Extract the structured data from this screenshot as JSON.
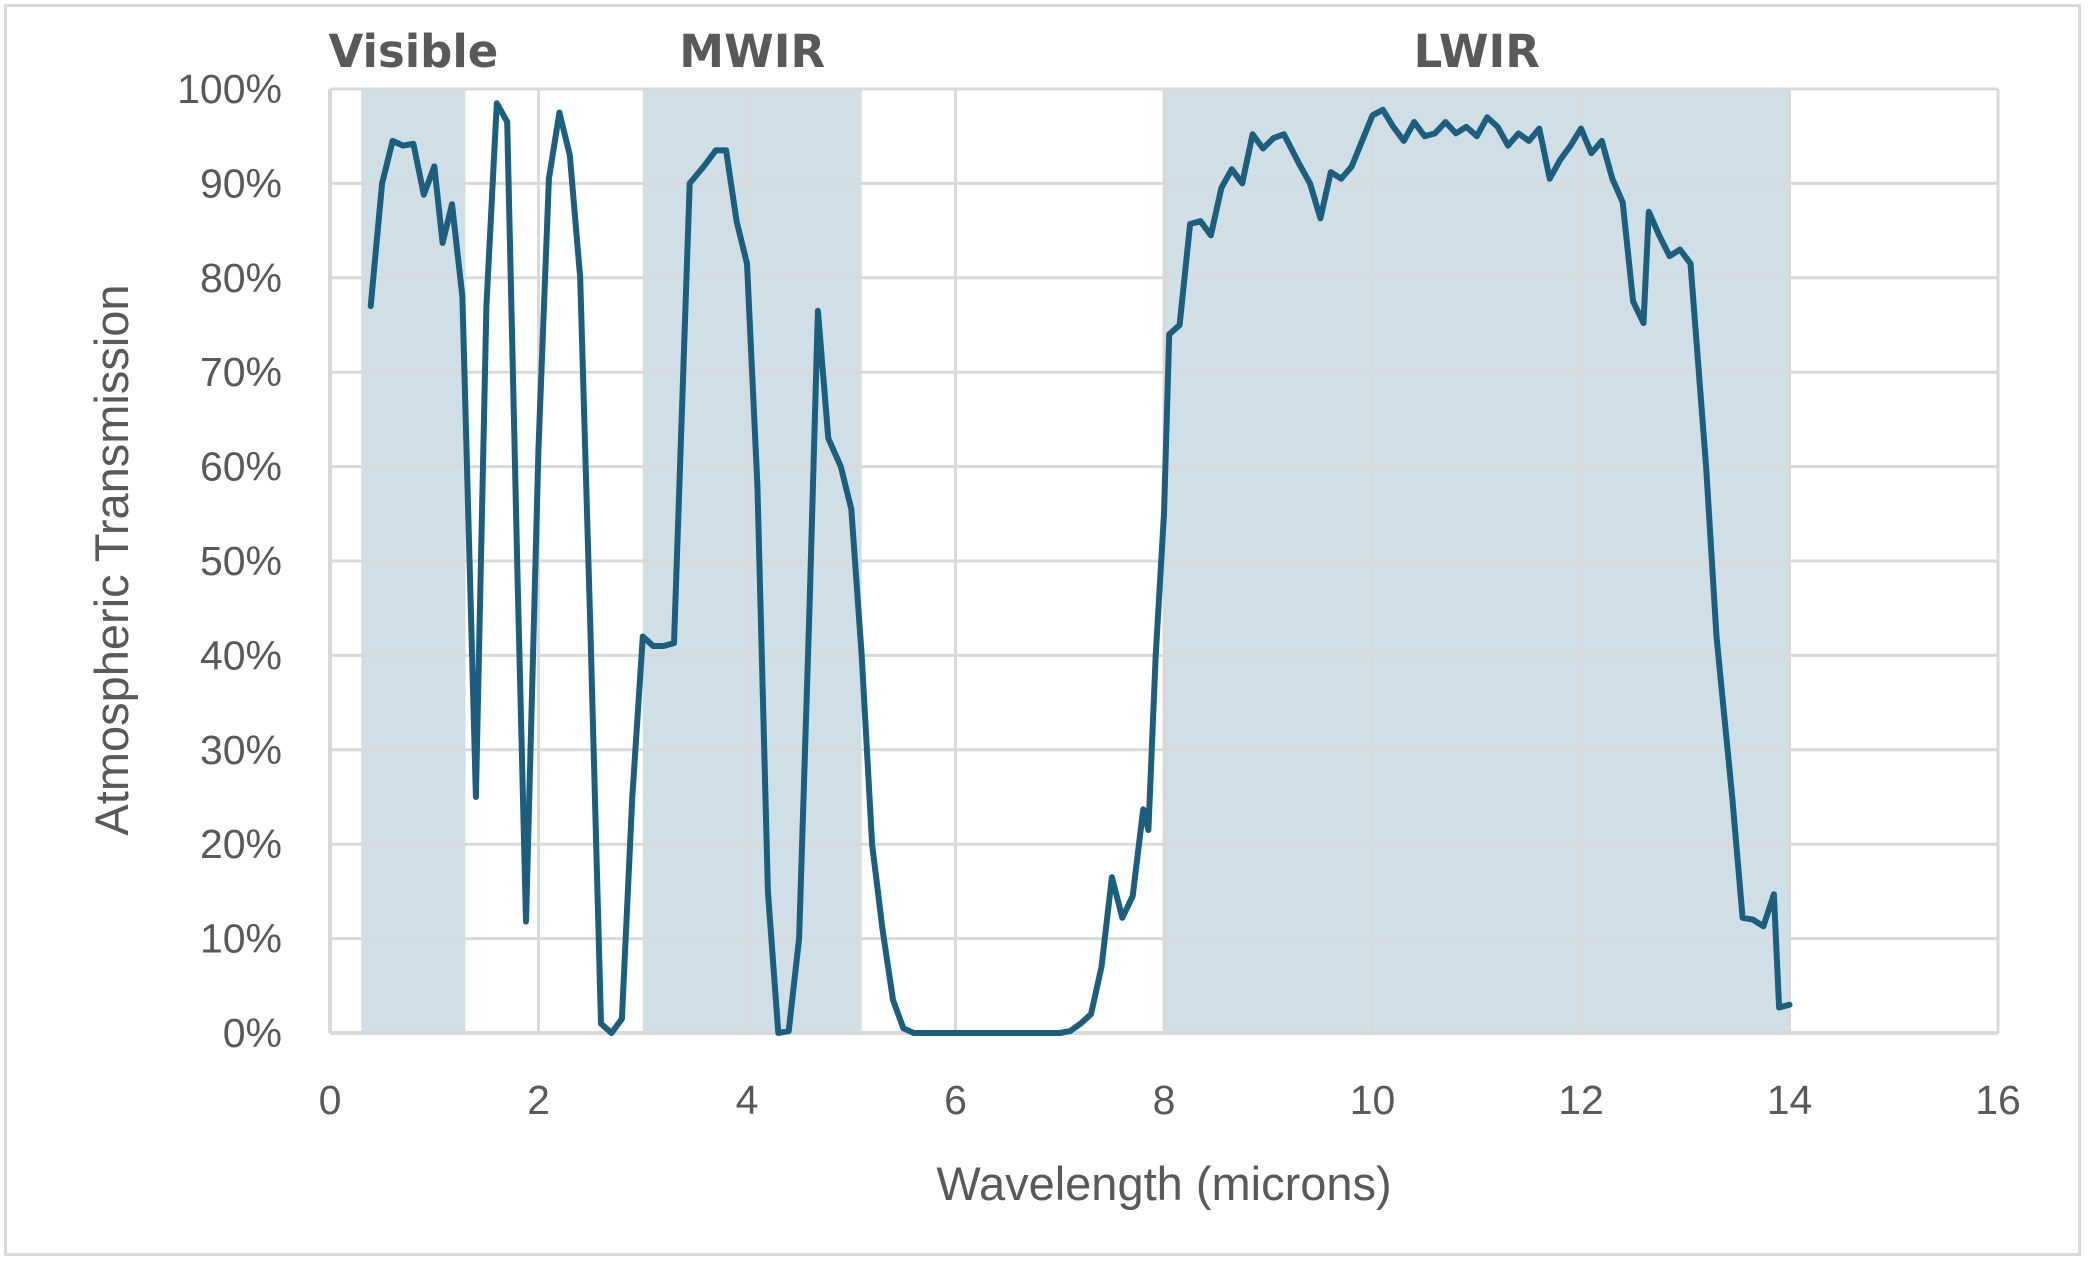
{
  "chart_data": {
    "type": "line",
    "title": "",
    "xlabel": "Wavelength (microns)",
    "ylabel": "Atmospheric Transmission",
    "xlim": [
      0,
      16
    ],
    "ylim": [
      0,
      1
    ],
    "x_ticks": [
      0,
      2,
      4,
      6,
      8,
      10,
      12,
      14,
      16
    ],
    "x_tick_labels": [
      "0",
      "2",
      "4",
      "6",
      "8",
      "10",
      "12",
      "14",
      "16"
    ],
    "y_ticks": [
      0,
      0.1,
      0.2,
      0.3,
      0.4,
      0.5,
      0.6,
      0.7,
      0.8,
      0.9,
      1.0
    ],
    "y_tick_labels": [
      "0%",
      "10%",
      "20%",
      "30%",
      "40%",
      "50%",
      "60%",
      "70%",
      "80%",
      "90%",
      "100%"
    ],
    "grid": true,
    "colors": {
      "line": "#1b5e7e",
      "band": "#d0dfe6",
      "grid": "#d9d9d9",
      "text": "#595959"
    },
    "bands": [
      {
        "name": "Visible",
        "x_start": 0.3,
        "x_end": 1.3
      },
      {
        "name": "MWIR",
        "x_start": 3.0,
        "x_end": 5.1
      },
      {
        "name": "LWIR",
        "x_start": 8.0,
        "x_end": 14.0
      }
    ],
    "series": [
      {
        "points": [
          [
            0.39,
            0.77
          ],
          [
            0.5,
            0.9
          ],
          [
            0.6,
            0.945
          ],
          [
            0.7,
            0.94
          ],
          [
            0.8,
            0.942
          ],
          [
            0.9,
            0.888
          ],
          [
            1.0,
            0.918
          ],
          [
            1.08,
            0.837
          ],
          [
            1.17,
            0.878
          ],
          [
            1.27,
            0.78
          ],
          [
            1.4,
            0.25
          ],
          [
            1.5,
            0.77
          ],
          [
            1.6,
            0.985
          ],
          [
            1.7,
            0.965
          ],
          [
            1.8,
            0.48
          ],
          [
            1.88,
            0.118
          ],
          [
            2.0,
            0.62
          ],
          [
            2.1,
            0.905
          ],
          [
            2.2,
            0.975
          ],
          [
            2.3,
            0.93
          ],
          [
            2.4,
            0.8
          ],
          [
            2.5,
            0.42
          ],
          [
            2.6,
            0.01
          ],
          [
            2.7,
            0.0
          ],
          [
            2.8,
            0.015
          ],
          [
            2.9,
            0.25
          ],
          [
            3.0,
            0.42
          ],
          [
            3.1,
            0.41
          ],
          [
            3.2,
            0.41
          ],
          [
            3.3,
            0.413
          ],
          [
            3.45,
            0.9
          ],
          [
            3.6,
            0.92
          ],
          [
            3.7,
            0.935
          ],
          [
            3.8,
            0.935
          ],
          [
            3.9,
            0.86
          ],
          [
            4.0,
            0.815
          ],
          [
            4.1,
            0.58
          ],
          [
            4.2,
            0.15
          ],
          [
            4.3,
            0.0
          ],
          [
            4.4,
            0.002
          ],
          [
            4.5,
            0.1
          ],
          [
            4.6,
            0.45
          ],
          [
            4.68,
            0.765
          ],
          [
            4.78,
            0.63
          ],
          [
            4.9,
            0.6
          ],
          [
            5.0,
            0.555
          ],
          [
            5.1,
            0.4
          ],
          [
            5.2,
            0.2
          ],
          [
            5.3,
            0.11
          ],
          [
            5.4,
            0.035
          ],
          [
            5.5,
            0.005
          ],
          [
            5.6,
            0.0
          ],
          [
            6.0,
            0.0
          ],
          [
            6.5,
            0.0
          ],
          [
            7.0,
            0.0
          ],
          [
            7.1,
            0.002
          ],
          [
            7.2,
            0.01
          ],
          [
            7.3,
            0.02
          ],
          [
            7.4,
            0.07
          ],
          [
            7.5,
            0.165
          ],
          [
            7.6,
            0.122
          ],
          [
            7.7,
            0.145
          ],
          [
            7.8,
            0.237
          ],
          [
            7.85,
            0.215
          ],
          [
            7.92,
            0.4
          ],
          [
            8.0,
            0.55
          ],
          [
            8.05,
            0.74
          ],
          [
            8.15,
            0.75
          ],
          [
            8.25,
            0.857
          ],
          [
            8.35,
            0.86
          ],
          [
            8.45,
            0.845
          ],
          [
            8.55,
            0.895
          ],
          [
            8.65,
            0.915
          ],
          [
            8.75,
            0.9
          ],
          [
            8.85,
            0.952
          ],
          [
            8.95,
            0.937
          ],
          [
            9.05,
            0.948
          ],
          [
            9.15,
            0.952
          ],
          [
            9.3,
            0.92
          ],
          [
            9.4,
            0.9
          ],
          [
            9.5,
            0.863
          ],
          [
            9.6,
            0.912
          ],
          [
            9.7,
            0.905
          ],
          [
            9.8,
            0.918
          ],
          [
            9.9,
            0.945
          ],
          [
            10.0,
            0.972
          ],
          [
            10.1,
            0.978
          ],
          [
            10.2,
            0.96
          ],
          [
            10.3,
            0.945
          ],
          [
            10.4,
            0.965
          ],
          [
            10.5,
            0.95
          ],
          [
            10.6,
            0.953
          ],
          [
            10.7,
            0.965
          ],
          [
            10.8,
            0.953
          ],
          [
            10.9,
            0.96
          ],
          [
            11.0,
            0.95
          ],
          [
            11.1,
            0.97
          ],
          [
            11.2,
            0.96
          ],
          [
            11.3,
            0.94
          ],
          [
            11.4,
            0.953
          ],
          [
            11.5,
            0.945
          ],
          [
            11.6,
            0.958
          ],
          [
            11.7,
            0.905
          ],
          [
            11.8,
            0.925
          ],
          [
            11.9,
            0.94
          ],
          [
            12.0,
            0.958
          ],
          [
            12.1,
            0.932
          ],
          [
            12.2,
            0.945
          ],
          [
            12.3,
            0.905
          ],
          [
            12.4,
            0.88
          ],
          [
            12.5,
            0.775
          ],
          [
            12.6,
            0.752
          ],
          [
            12.65,
            0.87
          ],
          [
            12.75,
            0.845
          ],
          [
            12.85,
            0.823
          ],
          [
            12.95,
            0.83
          ],
          [
            13.05,
            0.815
          ],
          [
            13.2,
            0.6
          ],
          [
            13.3,
            0.42
          ],
          [
            13.45,
            0.25
          ],
          [
            13.55,
            0.122
          ],
          [
            13.65,
            0.12
          ],
          [
            13.75,
            0.113
          ],
          [
            13.85,
            0.147
          ],
          [
            13.9,
            0.027
          ],
          [
            14.0,
            0.03
          ]
        ]
      }
    ]
  }
}
